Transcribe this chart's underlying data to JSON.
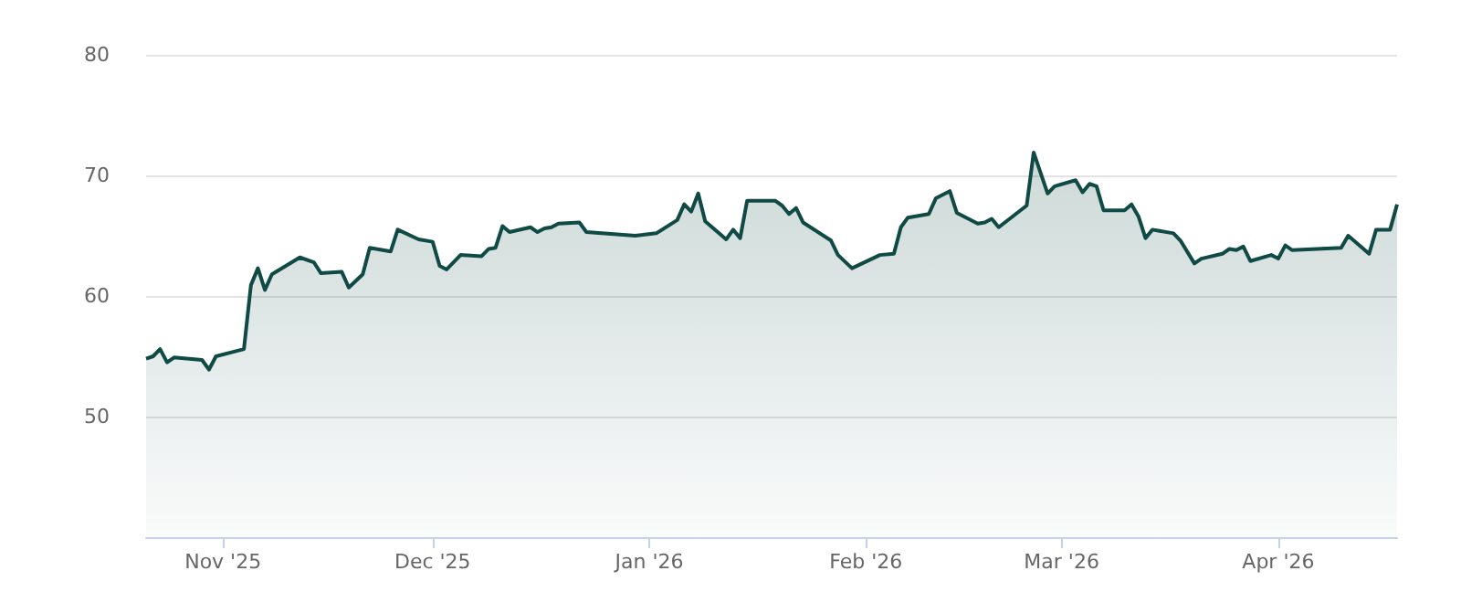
{
  "chart_data": {
    "type": "area",
    "x": [
      "2025-10-21",
      "2025-10-22",
      "2025-10-23",
      "2025-10-24",
      "2025-10-25",
      "2025-10-29",
      "2025-10-30",
      "2025-10-31",
      "2025-11-04",
      "2025-11-05",
      "2025-11-06",
      "2025-11-07",
      "2025-11-08",
      "2025-11-10",
      "2025-11-12",
      "2025-11-14",
      "2025-11-15",
      "2025-11-18",
      "2025-11-19",
      "2025-11-21",
      "2025-11-22",
      "2025-11-25",
      "2025-11-26",
      "2025-11-29",
      "2025-12-01",
      "2025-12-02",
      "2025-12-03",
      "2025-12-05",
      "2025-12-08",
      "2025-12-09",
      "2025-12-10",
      "2025-12-11",
      "2025-12-12",
      "2025-12-15",
      "2025-12-16",
      "2025-12-17",
      "2025-12-18",
      "2025-12-19",
      "2025-12-22",
      "2025-12-23",
      "2025-12-30",
      "2026-01-02",
      "2026-01-05",
      "2026-01-06",
      "2026-01-07",
      "2026-01-08",
      "2026-01-09",
      "2026-01-12",
      "2026-01-13",
      "2026-01-14",
      "2026-01-15",
      "2026-01-19",
      "2026-01-20",
      "2026-01-21",
      "2026-01-22",
      "2026-01-23",
      "2026-01-27",
      "2026-01-28",
      "2026-01-30",
      "2026-02-03",
      "2026-02-05",
      "2026-02-06",
      "2026-02-07",
      "2026-02-10",
      "2026-02-11",
      "2026-02-13",
      "2026-02-14",
      "2026-02-17",
      "2026-02-18",
      "2026-02-19",
      "2026-02-20",
      "2026-02-24",
      "2026-02-25",
      "2026-02-27",
      "2026-02-28",
      "2026-03-03",
      "2026-03-04",
      "2026-03-05",
      "2026-03-06",
      "2026-03-07",
      "2026-03-10",
      "2026-03-11",
      "2026-03-12",
      "2026-03-13",
      "2026-03-14",
      "2026-03-17",
      "2026-03-18",
      "2026-03-20",
      "2026-03-21",
      "2026-03-24",
      "2026-03-25",
      "2026-03-26",
      "2026-03-27",
      "2026-03-28",
      "2026-03-31",
      "2026-04-01",
      "2026-04-02",
      "2026-04-03",
      "2026-04-10",
      "2026-04-11",
      "2026-04-14",
      "2026-04-15",
      "2026-04-17",
      "2026-04-18"
    ],
    "series": [
      {
        "color": "#0f4a44",
        "values": [
          54.8,
          55.0,
          55.6,
          54.5,
          54.9,
          54.7,
          53.9,
          55.0,
          55.6,
          60.9,
          62.3,
          60.5,
          61.8,
          62.5,
          63.2,
          62.8,
          61.9,
          62.0,
          60.7,
          61.8,
          64.0,
          63.7,
          65.5,
          64.7,
          64.5,
          62.5,
          62.2,
          63.4,
          63.3,
          63.9,
          64.0,
          65.8,
          65.3,
          65.7,
          65.3,
          65.6,
          65.7,
          66.0,
          66.1,
          65.3,
          65.0,
          65.2,
          66.3,
          67.6,
          67.0,
          68.5,
          66.2,
          64.7,
          65.5,
          64.8,
          67.9,
          67.9,
          67.5,
          66.8,
          67.3,
          66.1,
          64.6,
          63.4,
          62.3,
          63.4,
          63.5,
          65.7,
          66.5,
          66.8,
          68.1,
          68.7,
          66.9,
          66.0,
          66.1,
          66.4,
          65.7,
          67.5,
          71.9,
          68.5,
          69.1,
          69.6,
          68.6,
          69.3,
          69.1,
          67.1,
          67.1,
          67.6,
          66.6,
          64.8,
          65.5,
          65.2,
          64.6,
          62.7,
          63.1,
          63.5,
          63.9,
          63.8,
          64.1,
          62.9,
          63.4,
          63.1,
          64.2,
          63.8,
          64.0,
          65.0,
          63.5,
          65.5,
          65.5,
          67.6
        ]
      }
    ],
    "xlim": [
      "2025-10-21",
      "2026-04-18"
    ],
    "xticks": [
      {
        "value": "2025-11-01",
        "label": "Nov '25"
      },
      {
        "value": "2025-12-01",
        "label": "Dec '25"
      },
      {
        "value": "2026-01-01",
        "label": "Jan '26"
      },
      {
        "value": "2026-02-01",
        "label": "Feb '26"
      },
      {
        "value": "2026-03-01",
        "label": "Mar '26"
      },
      {
        "value": "2026-04-01",
        "label": "Apr '26"
      }
    ],
    "ylim": [
      40,
      80
    ],
    "yticks": [
      50,
      60,
      70,
      80
    ],
    "grid": "y"
  }
}
